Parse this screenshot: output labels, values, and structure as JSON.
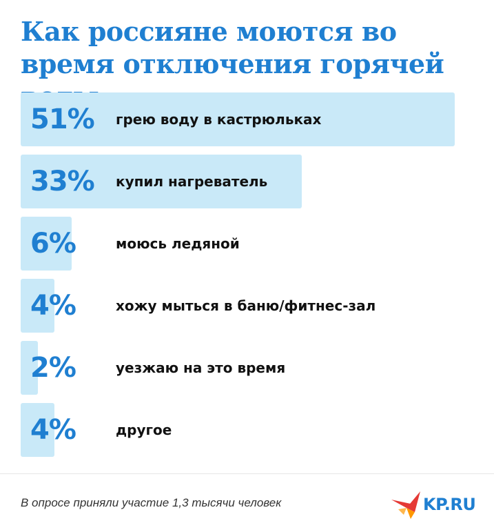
{
  "title": "Как россияне моются во время отключения горячей воды",
  "chart_data": {
    "type": "bar",
    "orientation": "horizontal",
    "categories": [
      "грею воду в кастрюльках",
      "купил нагреватель",
      "моюсь ледяной",
      "хожу мыться в баню/фитнес-зал",
      "уезжаю на это время",
      "другое"
    ],
    "values": [
      51,
      33,
      6,
      4,
      2,
      4
    ],
    "value_labels": [
      "51%",
      "33%",
      "6%",
      "4%",
      "2%",
      "4%"
    ],
    "xlim": [
      0,
      51
    ],
    "grid": false,
    "legend": "none"
  },
  "footnote": "В опросе приняли участие 1,3 тысячи человек",
  "logo": {
    "text": "KP.RU",
    "icon": "kp-bird-logo-icon"
  },
  "colors": {
    "accent": "#1f7fd1",
    "bar": "#c9e9f8",
    "text": "#111111",
    "logo_red": "#e53935"
  }
}
